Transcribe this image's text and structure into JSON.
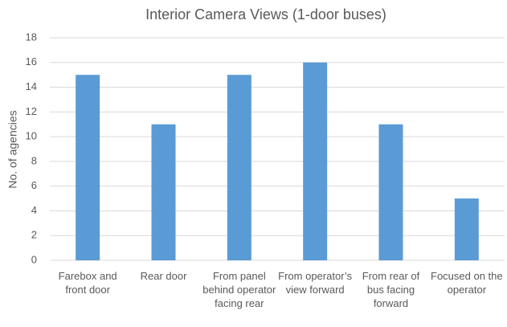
{
  "chart_data": {
    "type": "bar",
    "title": "Interior Camera Views (1-door buses)",
    "y_label": "No. of agencies",
    "categories": [
      "Farebox and front door",
      "Rear door",
      "From panel behind operator facing rear",
      "From operator’s view forward",
      "From rear of bus facing forward",
      "Focused on the operator"
    ],
    "values": [
      15,
      11,
      15,
      16,
      11,
      5
    ],
    "color": "#5b9bd5",
    "ylim": [
      0,
      18
    ],
    "yticks": [
      0,
      2,
      4,
      6,
      8,
      10,
      12,
      14,
      16,
      18
    ],
    "grid": true
  }
}
